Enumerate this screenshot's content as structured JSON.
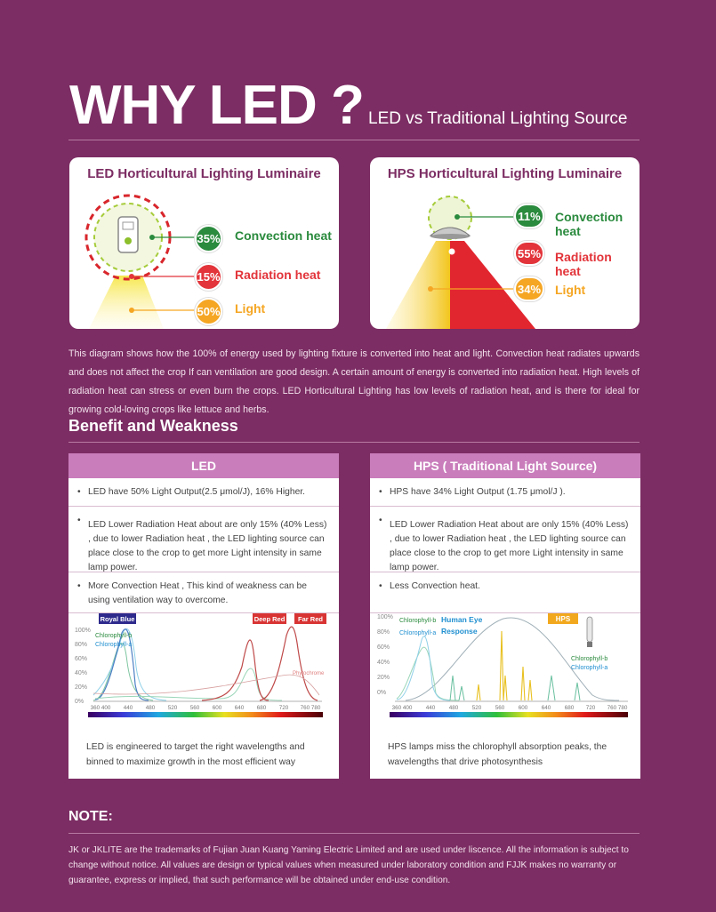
{
  "header": {
    "title": "WHY LED ?",
    "subtitle": "LED vs Traditional Lighting Source"
  },
  "led_panel": {
    "title": "LED Horticultural Lighting Luminaire",
    "items": [
      {
        "pct": "35%",
        "label": "Convection heat",
        "color": "#2a8a3d"
      },
      {
        "pct": "15%",
        "label": "Radiation heat",
        "color": "#e2343a"
      },
      {
        "pct": "50%",
        "label": "Light",
        "color": "#f5a623"
      }
    ]
  },
  "hps_panel": {
    "title": "HPS Horticultural Lighting Luminaire",
    "items": [
      {
        "pct": "11%",
        "label": "Convection heat",
        "color": "#2a8a3d"
      },
      {
        "pct": "55%",
        "label": "Radiation heat",
        "color": "#e2343a"
      },
      {
        "pct": "34%",
        "label": "Light",
        "color": "#f5a623"
      }
    ]
  },
  "description": "This diagram shows how the 100% of energy used by lighting fixture is converted into heat and light. Convection heat radiates upwards and does not affect the crop If can ventilation are good design. A certain amount of energy is converted into radiation heat. High levels of radiation heat can stress or even burn the crops. LED Horticultural Lighting has low levels of radiation heat, and is there for ideal for growing cold-loving crops like lettuce and herbs.",
  "benefit_heading": "Benefit  and  Weakness",
  "led_column": {
    "header": "LED",
    "rows": [
      "LED have 50% Light Output(2.5 μmol/J), 16% Higher.",
      "LED Lower Radiation Heat about are only 15% (40% Less) , due to lower Radiation heat , the LED lighting source can  place close to the crop to get more Light intensity in same lamp power.",
      "More Convection Heat , This kind of weakness can be using ventilation way to overcome."
    ],
    "chart": {
      "tags": [
        "Royal Blue",
        "Deep Red",
        "Far Red"
      ],
      "legend": [
        "Chlorophyll-b",
        "Chlorophyll-a",
        "Phytochrome"
      ],
      "yticks": [
        "100%",
        "80%",
        "60%",
        "40%",
        "20%",
        "0%"
      ],
      "xticks": [
        "360 400",
        "440",
        "480",
        "520",
        "560",
        "600",
        "640",
        "680",
        "720",
        "760 780"
      ]
    },
    "caption": "LED is engineered to target the right wavelengths and binned to maximize growth in the most efficient way"
  },
  "hps_column": {
    "header": "HPS ( Traditional Light Source)",
    "rows": [
      "HPS have 34% Light Output (1.75 μmol/J ).",
      "LED Lower Radiation Heat about are only 15% (40% Less) , due to lower Radiation heat , the LED lighting source can  place close to the crop to get more Light intensity in same lamp power.",
      "Less Convection heat."
    ],
    "chart": {
      "tags": [
        "HPS"
      ],
      "legend": [
        "Chlorophyll-b",
        "Chlorophyll-a",
        "Human Eye",
        "Response"
      ],
      "yticks": [
        "100%",
        "80%",
        "60%",
        "40%",
        "20%",
        "0%"
      ],
      "xticks": [
        "360 400",
        "440",
        "480",
        "520",
        "560",
        "600",
        "640",
        "680",
        "720",
        "760 780"
      ]
    },
    "caption": "HPS lamps miss the chlorophyll absorption peaks, the wavelengths that drive photosynthesis"
  },
  "note": {
    "heading": "NOTE:",
    "text": "JK or JKLITE are the trademarks of Fujian Juan Kuang Yaming Electric Limited and are used under liscence. All the information is subject to change without notice. All values are design or typical values when measured under laboratory condition and FJJK makes no warranty or guarantee, express or implied, that such performance will be obtained under end-use condition."
  }
}
